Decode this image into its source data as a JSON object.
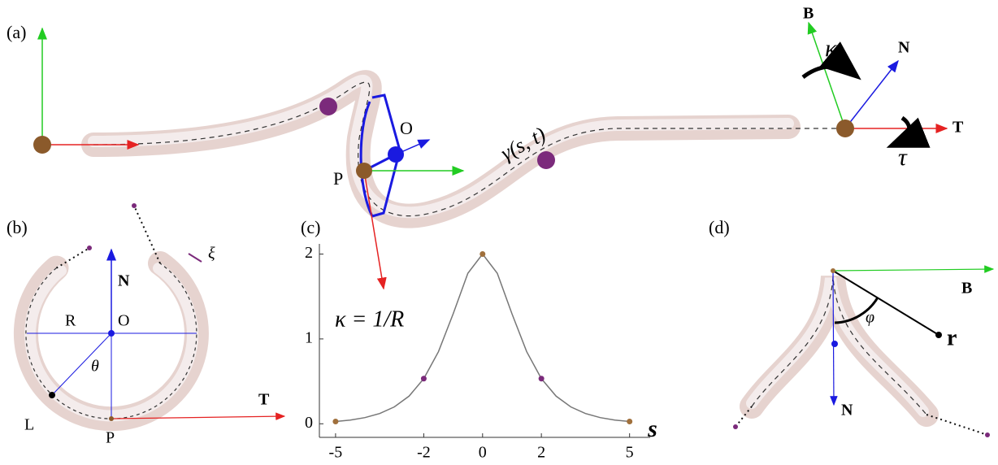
{
  "labels": {
    "a": "(a)",
    "b": "(b)",
    "c": "(c)",
    "d": "(d)"
  },
  "panel_a": {
    "B": "B",
    "kappa": "κ",
    "N": "N",
    "T": "T",
    "tau": "τ",
    "O": "O",
    "P": "P",
    "gamma": "γ(s, t)"
  },
  "panel_b": {
    "xi": "ξ",
    "N": "N",
    "R": "R",
    "O": "O",
    "theta": "θ",
    "L": "L",
    "P": "P",
    "T": "T"
  },
  "panel_d": {
    "B": "B",
    "phi": "φ",
    "r": "r",
    "N": "N"
  },
  "chart_data": {
    "type": "line",
    "annotation": "κ = 1/R",
    "xlabel": "s",
    "x": [
      -5,
      -4.5,
      -4,
      -3.5,
      -3,
      -2.5,
      -2,
      -1.5,
      -1,
      -0.5,
      0,
      0.5,
      1,
      1.5,
      2,
      2.5,
      3,
      3.5,
      4,
      4.5,
      5
    ],
    "values": [
      0.027,
      0.044,
      0.073,
      0.121,
      0.199,
      0.326,
      0.532,
      0.85,
      1.296,
      1.774,
      2,
      1.774,
      1.296,
      0.85,
      0.532,
      0.326,
      0.199,
      0.121,
      0.073,
      0.044,
      0.027
    ],
    "color": "#777777",
    "points": {
      "x": [
        -5,
        -2,
        0,
        2,
        5
      ],
      "values": [
        0.027,
        0.532,
        2,
        0.532,
        0.027
      ],
      "colors": [
        "#a0703c",
        "#7b2a7b",
        "#a0703c",
        "#7b2a7b",
        "#a0703c"
      ]
    },
    "xlim": [
      -5.55,
      5.7
    ],
    "ylim": [
      -0.16,
      2.12
    ],
    "xticks": [
      -5,
      -2,
      0,
      2,
      5
    ],
    "yticks": [
      0,
      1,
      2
    ]
  }
}
